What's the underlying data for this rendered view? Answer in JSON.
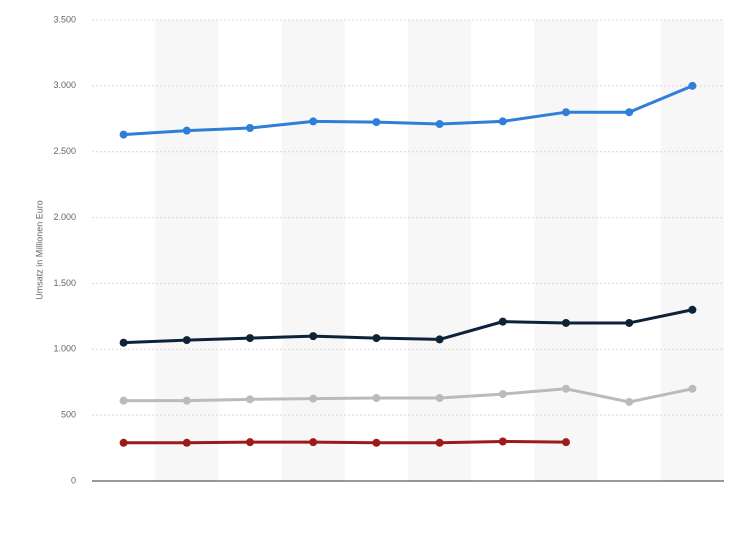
{
  "chart_data": {
    "type": "line",
    "y_label": "Umsatz in Millionen Euro",
    "categories": [
      null,
      null,
      null,
      null,
      null,
      null,
      null,
      null,
      null,
      null
    ],
    "series": [
      {
        "color": "#2f7ed8",
        "values": [
          2630,
          2660,
          2680,
          2730,
          2725,
          2710,
          2730,
          2800,
          2800,
          3000
        ]
      },
      {
        "color": "#0d233a",
        "values": [
          1050,
          1070,
          1085,
          1100,
          1085,
          1075,
          1210,
          1200,
          1200,
          1300
        ]
      },
      {
        "color": "#bbbbbb",
        "values": [
          610,
          610,
          620,
          625,
          630,
          630,
          660,
          700,
          600,
          700
        ]
      },
      {
        "color": "#9b1b1b",
        "values": [
          290,
          290,
          295,
          295,
          290,
          290,
          300,
          295,
          null,
          null
        ]
      }
    ],
    "ylim": [
      0,
      3500
    ],
    "yticks": [
      0,
      500,
      {
        "value": 1000,
        "label": "1.000"
      },
      {
        "value": 1500,
        "label": "1.500"
      },
      {
        "value": 2000,
        "label": "2.000"
      },
      {
        "value": 2500,
        "label": "2.500"
      },
      {
        "value": 3000,
        "label": "3.000"
      },
      {
        "value": 3500,
        "label": "3.500"
      }
    ],
    "grid": true
  }
}
